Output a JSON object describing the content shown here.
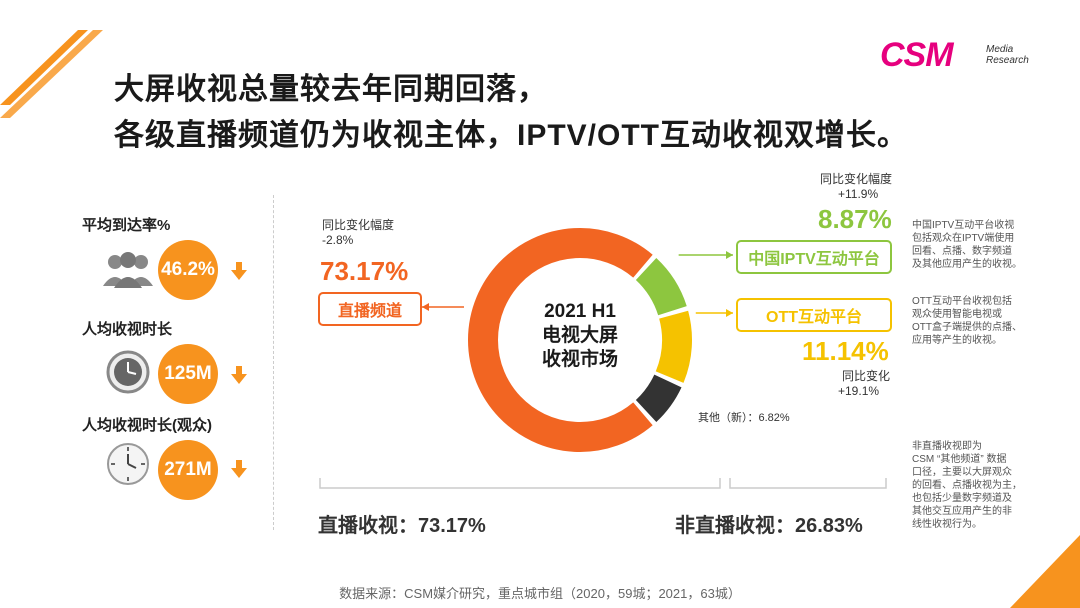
{
  "header": {
    "title_line1": "大屏收视总量较去年同期回落，",
    "title_line2": "各级直播频道仍为收视主体，IPTV/OTT互动收视双增长。"
  },
  "logo": {
    "main": "CSM",
    "sub1": "Media",
    "sub2": "Research"
  },
  "kpis": [
    {
      "label": "平均到达率%",
      "value": "46.2%"
    },
    {
      "label": "人均收视时长",
      "value": "125M"
    },
    {
      "label": "人均收视时长(观众)",
      "value": "271M"
    }
  ],
  "colors": {
    "live": "#f26522",
    "iptv": "#8dc63f",
    "ott": "#f5c200",
    "other": "#333333",
    "accent": "#f7931e"
  },
  "chart_data": {
    "type": "pie",
    "center_label": [
      "2021 H1",
      "电视大屏",
      "收视市场"
    ],
    "slices": [
      {
        "name": "直播频道",
        "value": 73.17,
        "value_label": "73.17%",
        "change_label": "同比变化幅度",
        "change": "-2.8%"
      },
      {
        "name": "中国IPTV互动平台",
        "value": 8.87,
        "value_label": "8.87%",
        "change_label": "同比变化幅度",
        "change": "+11.9%"
      },
      {
        "name": "OTT互动平台",
        "value": 11.14,
        "value_label": "11.14%",
        "change_label": "同比变化",
        "change": "+19.1%"
      },
      {
        "name": "其他（新）",
        "value": 6.82,
        "label": "其他（新）：6.82%"
      }
    ],
    "totals": [
      {
        "label": "直播收视：73.17%"
      },
      {
        "label": "非直播收视：26.83%"
      }
    ]
  },
  "notes": {
    "iptv": [
      "中国IPTV互动平台收视",
      "包括观众在IPTV端使用",
      "回看、点播、数字频道",
      "及其他应用产生的收视。"
    ],
    "ott": [
      "OTT互动平台收视包括",
      "观众使用智能电视或",
      "OTT盒子端提供的点播、",
      "应用等产生的收视。"
    ],
    "other": [
      "非直播收视即为",
      "CSM “其他频道” 数据",
      "口径，主要以大屏观众",
      "的回看、点播收视为主，",
      "也包括少量数字频道及",
      "其他交互应用产生的非",
      "线性收视行为。"
    ]
  },
  "source": "数据来源：CSM媒介研究，重点城市组（2020，59城；2021，63城）"
}
